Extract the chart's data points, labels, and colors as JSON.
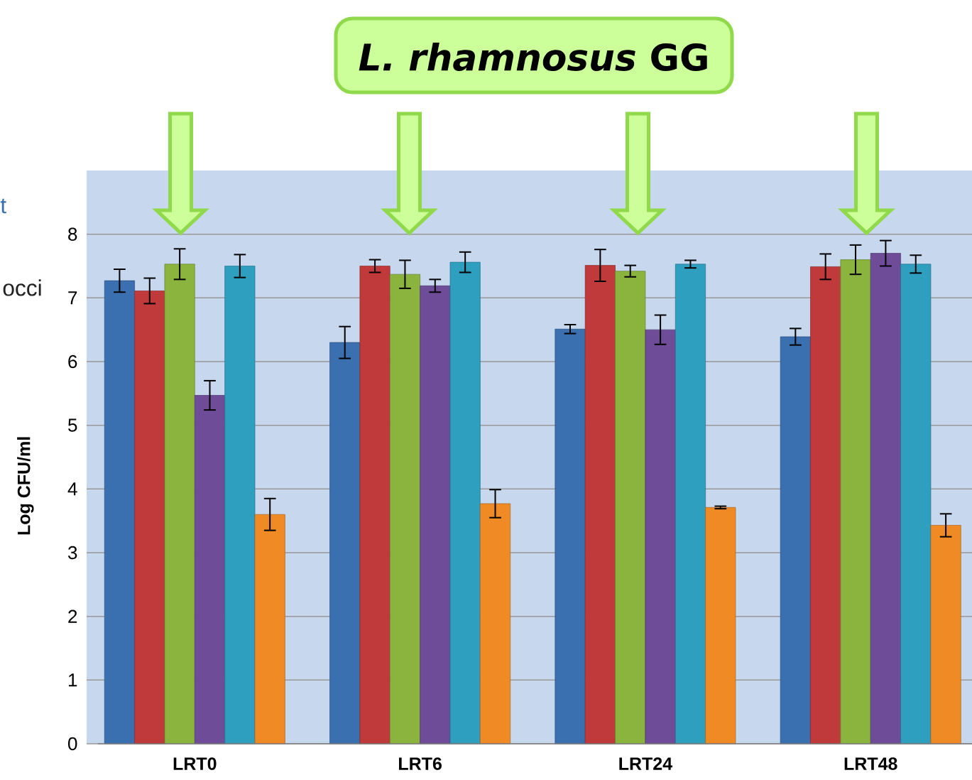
{
  "chart_data": {
    "type": "bar",
    "title": "*L. rhamnosus* GG",
    "ylabel": "Log CFU/ml",
    "categories": [
      "LRT0",
      "LRT6",
      "LRT24",
      "LRT48"
    ],
    "series": [
      {
        "color": "#3a6fb0",
        "values": [
          7.27,
          6.3,
          6.51,
          6.39
        ],
        "errors": [
          0.18,
          0.25,
          0.07,
          0.13
        ]
      },
      {
        "color": "#c0393b",
        "values": [
          7.11,
          7.5,
          7.51,
          7.49
        ],
        "errors": [
          0.2,
          0.1,
          0.25,
          0.2
        ]
      },
      {
        "color": "#8ab43e",
        "values": [
          7.53,
          7.37,
          7.42,
          7.6
        ],
        "errors": [
          0.24,
          0.22,
          0.09,
          0.23
        ]
      },
      {
        "color": "#6e4c98",
        "values": [
          5.47,
          7.19,
          6.5,
          7.7
        ],
        "errors": [
          0.23,
          0.1,
          0.23,
          0.2
        ]
      },
      {
        "color": "#2f9fc0",
        "values": [
          7.5,
          7.56,
          7.53,
          7.53
        ],
        "errors": [
          0.18,
          0.16,
          0.06,
          0.14
        ]
      },
      {
        "color": "#f08a24",
        "values": [
          3.6,
          3.77,
          3.71,
          3.43
        ],
        "errors": [
          0.25,
          0.22,
          0.02,
          0.18
        ]
      }
    ],
    "ylim": [
      0,
      9
    ],
    "yticks": [
      0,
      1,
      2,
      3,
      4,
      5,
      6,
      7,
      8
    ],
    "grid": "y",
    "annotations": [
      "t",
      "occi"
    ]
  }
}
